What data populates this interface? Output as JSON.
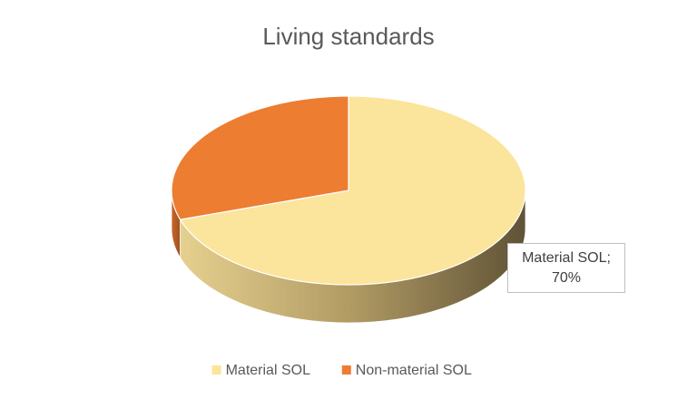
{
  "chart_data": {
    "type": "pie3d",
    "title": "Living standards",
    "categories": [
      "Material SOL",
      "Non-material SOL"
    ],
    "values": [
      70,
      30
    ],
    "value_labels": [
      "Material SOL; 70%",
      null
    ],
    "colors": [
      "#fbe49b",
      "#ed7d31"
    ],
    "legend": "bottom"
  }
}
